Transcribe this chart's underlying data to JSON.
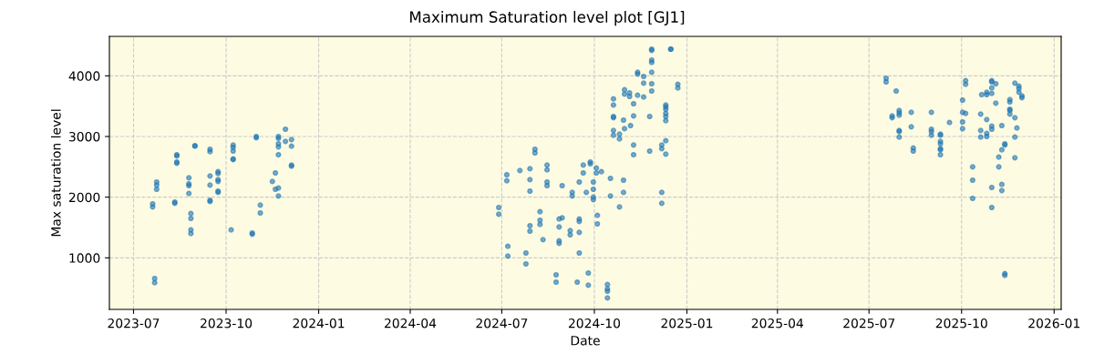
{
  "chart_data": {
    "type": "scatter",
    "title": "Maximum Saturation level plot [GJ1]",
    "xlabel": "Date",
    "ylabel": "Max saturation level",
    "x": [
      "2023-07-20",
      "2023-07-20",
      "2023-07-22",
      "2023-07-22",
      "2023-07-24",
      "2023-07-24",
      "2023-07-24",
      "2023-08-11",
      "2023-08-11",
      "2023-08-13",
      "2023-08-13",
      "2023-08-13",
      "2023-08-13",
      "2023-08-25",
      "2023-08-25",
      "2023-08-25",
      "2023-08-25",
      "2023-08-27",
      "2023-08-27",
      "2023-08-27",
      "2023-08-27",
      "2023-08-31",
      "2023-08-31",
      "2023-09-15",
      "2023-09-15",
      "2023-09-15",
      "2023-09-15",
      "2023-09-15",
      "2023-09-15",
      "2023-09-23",
      "2023-09-23",
      "2023-09-23",
      "2023-09-23",
      "2023-09-23",
      "2023-09-23",
      "2023-10-06",
      "2023-10-08",
      "2023-10-08",
      "2023-10-08",
      "2023-10-08",
      "2023-10-08",
      "2023-10-27",
      "2023-10-27",
      "2023-10-31",
      "2023-10-31",
      "2023-11-04",
      "2023-11-04",
      "2023-11-16",
      "2023-11-19",
      "2023-11-19",
      "2023-11-22",
      "2023-11-22",
      "2023-11-22",
      "2023-11-22",
      "2023-11-22",
      "2023-11-22",
      "2023-11-22",
      "2023-11-29",
      "2023-11-29",
      "2023-12-05",
      "2023-12-05",
      "2023-12-05",
      "2023-12-05",
      "2024-06-28",
      "2024-06-28",
      "2024-07-06",
      "2024-07-06",
      "2024-07-07",
      "2024-07-07",
      "2024-07-19",
      "2024-07-25",
      "2024-07-25",
      "2024-07-29",
      "2024-07-29",
      "2024-07-29",
      "2024-07-29",
      "2024-07-29",
      "2024-08-03",
      "2024-08-03",
      "2024-08-08",
      "2024-08-08",
      "2024-08-08",
      "2024-08-11",
      "2024-08-15",
      "2024-08-15",
      "2024-08-15",
      "2024-08-15",
      "2024-08-24",
      "2024-08-24",
      "2024-08-27",
      "2024-08-27",
      "2024-08-27",
      "2024-08-27",
      "2024-08-30",
      "2024-08-30",
      "2024-09-07",
      "2024-09-07",
      "2024-09-09",
      "2024-09-09",
      "2024-09-14",
      "2024-09-16",
      "2024-09-16",
      "2024-09-16",
      "2024-09-16",
      "2024-09-16",
      "2024-09-20",
      "2024-09-20",
      "2024-09-23",
      "2024-09-25",
      "2024-09-25",
      "2024-09-27",
      "2024-09-27",
      "2024-09-30",
      "2024-09-30",
      "2024-09-30",
      "2024-09-30",
      "2024-10-03",
      "2024-10-03",
      "2024-10-04",
      "2024-10-04",
      "2024-10-08",
      "2024-10-14",
      "2024-10-14",
      "2024-10-14",
      "2024-10-14",
      "2024-10-17",
      "2024-10-17",
      "2024-10-20",
      "2024-10-20",
      "2024-10-20",
      "2024-10-20",
      "2024-10-20",
      "2024-10-20",
      "2024-10-26",
      "2024-10-26",
      "2024-10-26",
      "2024-10-30",
      "2024-10-30",
      "2024-10-30",
      "2024-10-31",
      "2024-10-31",
      "2024-10-31",
      "2024-11-05",
      "2024-11-05",
      "2024-11-06",
      "2024-11-09",
      "2024-11-09",
      "2024-11-09",
      "2024-11-09",
      "2024-11-13",
      "2024-11-13",
      "2024-11-13",
      "2024-11-19",
      "2024-11-19",
      "2024-11-19",
      "2024-11-25",
      "2024-11-25",
      "2024-11-27",
      "2024-11-27",
      "2024-11-27",
      "2024-11-27",
      "2024-11-27",
      "2024-11-27",
      "2024-11-27",
      "2024-12-07",
      "2024-12-07",
      "2024-12-07",
      "2024-12-07",
      "2024-12-11",
      "2024-12-11",
      "2024-12-11",
      "2024-12-11",
      "2024-12-11",
      "2024-12-11",
      "2024-12-11",
      "2024-12-11",
      "2024-12-16",
      "2024-12-16",
      "2024-12-23",
      "2024-12-23",
      "2025-07-18",
      "2025-07-18",
      "2025-07-24",
      "2025-07-24",
      "2025-07-28",
      "2025-07-31",
      "2025-07-31",
      "2025-07-31",
      "2025-07-31",
      "2025-07-31",
      "2025-07-31",
      "2025-08-12",
      "2025-08-12",
      "2025-08-14",
      "2025-08-14",
      "2025-09-01",
      "2025-09-01",
      "2025-09-01",
      "2025-09-01",
      "2025-09-10",
      "2025-09-10",
      "2025-09-10",
      "2025-09-10",
      "2025-09-10",
      "2025-09-10",
      "2025-09-10",
      "2025-09-19",
      "2025-10-02",
      "2025-10-02",
      "2025-10-02",
      "2025-10-02",
      "2025-10-05",
      "2025-10-05",
      "2025-10-05",
      "2025-10-12",
      "2025-10-12",
      "2025-10-12",
      "2025-10-20",
      "2025-10-20",
      "2025-10-20",
      "2025-10-21",
      "2025-10-26",
      "2025-10-26",
      "2025-10-26",
      "2025-10-26",
      "2025-10-26",
      "2025-10-31",
      "2025-10-31",
      "2025-10-31",
      "2025-10-31",
      "2025-10-31",
      "2025-10-31",
      "2025-10-31",
      "2025-10-31",
      "2025-11-04",
      "2025-11-04",
      "2025-11-07",
      "2025-11-07",
      "2025-11-10",
      "2025-11-10",
      "2025-11-10",
      "2025-11-10",
      "2025-11-13",
      "2025-11-13",
      "2025-11-13",
      "2025-11-13",
      "2025-11-18",
      "2025-11-18",
      "2025-11-18",
      "2025-11-18",
      "2025-11-18",
      "2025-11-23",
      "2025-11-23",
      "2025-11-23",
      "2025-11-23",
      "2025-11-25",
      "2025-11-27",
      "2025-11-27",
      "2025-11-27",
      "2025-11-30",
      "2025-11-30"
    ],
    "values": [
      1840,
      1890,
      660,
      590,
      2200,
      2250,
      2130,
      1920,
      1900,
      2560,
      2580,
      2680,
      2700,
      2060,
      2190,
      2220,
      2320,
      1400,
      1460,
      1650,
      1730,
      2840,
      2850,
      2350,
      2200,
      2750,
      2790,
      1930,
      1950,
      2080,
      2100,
      2260,
      2290,
      2390,
      2420,
      1460,
      2760,
      2820,
      2860,
      2620,
      2630,
      1390,
      1410,
      2980,
      3000,
      1740,
      1870,
      2260,
      2400,
      2130,
      2830,
      2880,
      2970,
      3000,
      2700,
      2020,
      2150,
      3120,
      2920,
      2510,
      2530,
      2840,
      2950,
      1830,
      1720,
      2370,
      2270,
      1190,
      1030,
      2440,
      1080,
      900,
      2470,
      2290,
      2100,
      1440,
      1530,
      2790,
      2730,
      1620,
      1760,
      1550,
      1300,
      2450,
      2530,
      2250,
      2190,
      720,
      600,
      1240,
      1280,
      1510,
      1640,
      1660,
      2190,
      1450,
      1380,
      2080,
      2020,
      600,
      1080,
      1420,
      1640,
      1600,
      2250,
      2400,
      2530,
      2080,
      750,
      550,
      2550,
      2580,
      2130,
      2250,
      2000,
      1960,
      2480,
      2400,
      1700,
      1560,
      2420,
      560,
      450,
      490,
      340,
      2020,
      2310,
      3020,
      3100,
      3330,
      3310,
      3520,
      3620,
      2960,
      3040,
      1840,
      2080,
      2280,
      3270,
      3700,
      3770,
      3130,
      3720,
      3660,
      3180,
      3340,
      3540,
      2700,
      2860,
      4030,
      4060,
      3680,
      3880,
      3990,
      3650,
      3330,
      2760,
      4420,
      4440,
      4220,
      4260,
      4060,
      3870,
      3750,
      2860,
      2800,
      2080,
      1900,
      3330,
      3380,
      3450,
      3490,
      3520,
      2710,
      2930,
      3260,
      4440,
      4440,
      3860,
      3800,
      3960,
      3900,
      3310,
      3340,
      3750,
      3430,
      3390,
      3100,
      3080,
      2990,
      3350,
      3400,
      3160,
      2760,
      2810,
      3400,
      3020,
      3080,
      3120,
      2700,
      2780,
      2880,
      2920,
      2800,
      3020,
      3040,
      3230,
      3400,
      3130,
      3240,
      3600,
      3920,
      3860,
      3380,
      2280,
      2500,
      1980,
      3100,
      2990,
      3370,
      3690,
      3730,
      3690,
      3280,
      3050,
      3000,
      3170,
      3120,
      2160,
      1830,
      3900,
      3920,
      3800,
      3710,
      3550,
      3870,
      2660,
      2500,
      2780,
      2110,
      2210,
      3180,
      2860,
      2880,
      740,
      710,
      3610,
      3570,
      3450,
      3430,
      3370,
      2990,
      3310,
      2650,
      3880,
      3140,
      3830,
      3790,
      3730,
      3670,
      3640
    ],
    "color": "#1f77b4",
    "marker": "circle",
    "xlim": [
      "2023-06-07",
      "2026-01-08"
    ],
    "xticks": [
      {
        "value": "2023-07-01",
        "label": "2023-07"
      },
      {
        "value": "2023-10-01",
        "label": "2023-10"
      },
      {
        "value": "2024-01-01",
        "label": "2024-01"
      },
      {
        "value": "2024-04-01",
        "label": "2024-04"
      },
      {
        "value": "2024-07-01",
        "label": "2024-07"
      },
      {
        "value": "2024-10-01",
        "label": "2024-10"
      },
      {
        "value": "2025-01-01",
        "label": "2025-01"
      },
      {
        "value": "2025-04-01",
        "label": "2025-04"
      },
      {
        "value": "2025-07-01",
        "label": "2025-07"
      },
      {
        "value": "2025-10-01",
        "label": "2025-10"
      },
      {
        "value": "2026-01-01",
        "label": "2026-01"
      }
    ],
    "ylim": [
      150,
      4650
    ],
    "yticks": [
      1000,
      2000,
      3000,
      4000
    ],
    "grid": true
  }
}
